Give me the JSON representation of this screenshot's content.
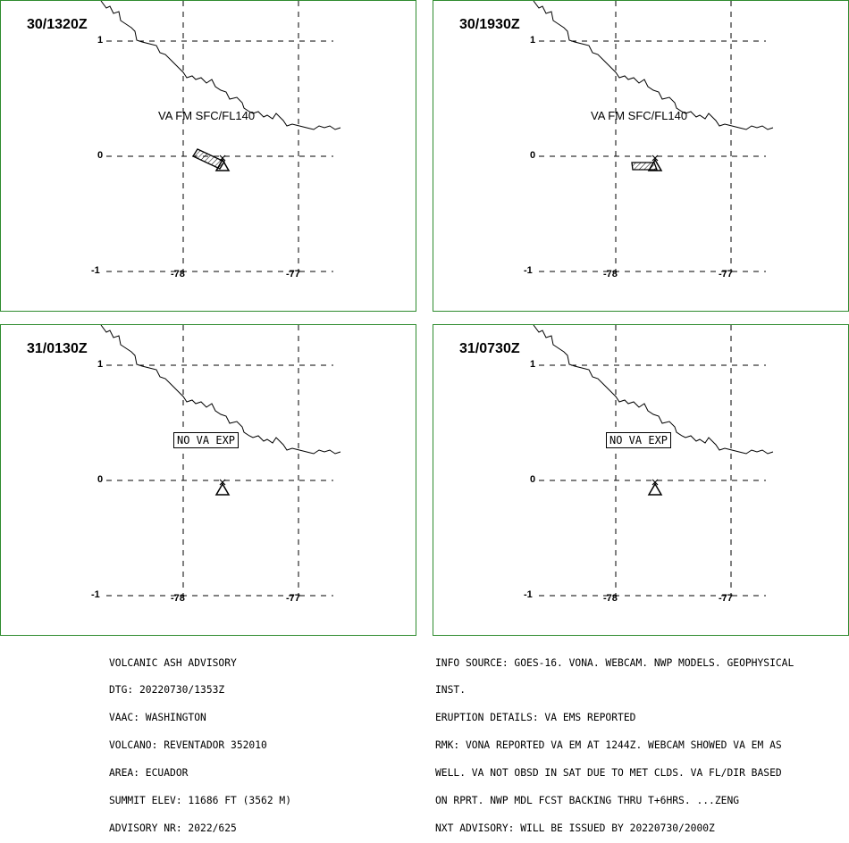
{
  "panels": [
    {
      "time": "30/1320Z",
      "label": "VA FM SFC/FL140",
      "type": "ash",
      "polygon": "long"
    },
    {
      "time": "30/1930Z",
      "label": "VA FM SFC/FL140",
      "type": "ash",
      "polygon": "short"
    },
    {
      "time": "31/0130Z",
      "label": "NO VA EXP",
      "type": "none"
    },
    {
      "time": "31/0730Z",
      "label": "NO VA EXP",
      "type": "none"
    }
  ],
  "grid": {
    "lat_labels": [
      "1",
      "0",
      "-1"
    ],
    "lon_labels": [
      "-78",
      "-77"
    ]
  },
  "advisory_left": [
    "VOLCANIC ASH ADVISORY",
    "DTG: 20220730/1353Z",
    "VAAC: WASHINGTON",
    "VOLCANO: REVENTADOR 352010",
    "AREA: ECUADOR",
    "SUMMIT ELEV: 11686 FT (3562 M)",
    "ADVISORY NR: 2022/625"
  ],
  "advisory_right": [
    "INFO SOURCE: GOES-16. VONA. WEBCAM. NWP MODELS. GEOPHYSICAL",
    "INST.",
    "ERUPTION DETAILS: VA EMS REPORTED",
    "RMK: VONA REPORTED VA EM AT 1244Z. WEBCAM SHOWED VA EM AS",
    "WELL. VA NOT OBSD IN SAT DUE TO MET CLDS. VA FL/DIR BASED",
    "ON RPRT. NWP MDL FCST BACKING THRU T+6HRS. ...ZENG",
    "NXT ADVISORY: WILL BE ISSUED BY 20220730/2000Z"
  ],
  "colors": {
    "border": "#2e8b2e",
    "ink": "#000000"
  }
}
